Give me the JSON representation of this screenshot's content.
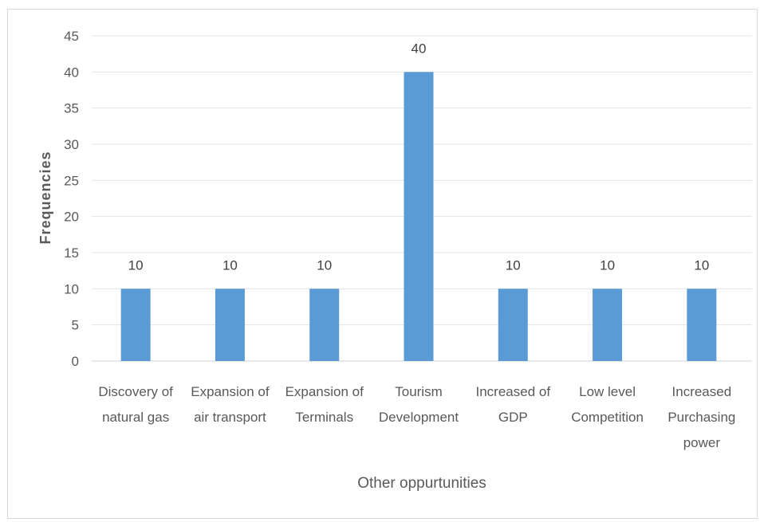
{
  "chart_data": {
    "type": "bar",
    "title": "",
    "xlabel": "Other oppurtunities",
    "ylabel": "Frequencies",
    "ylim": [
      0,
      45
    ],
    "ytick_step": 5,
    "grid": true,
    "legend": "none",
    "bar_color": "#5b9bd5",
    "categories": [
      [
        "Discovery of",
        "natural gas"
      ],
      [
        "Expansion of",
        "air transport"
      ],
      [
        "Expansion of",
        "Terminals"
      ],
      [
        "Tourism",
        "Development"
      ],
      [
        "Increased of",
        "GDP"
      ],
      [
        "Low level",
        "Competition"
      ],
      [
        "Increased",
        "Purchasing",
        "power"
      ]
    ],
    "values": [
      10,
      10,
      10,
      40,
      10,
      10,
      10
    ]
  }
}
